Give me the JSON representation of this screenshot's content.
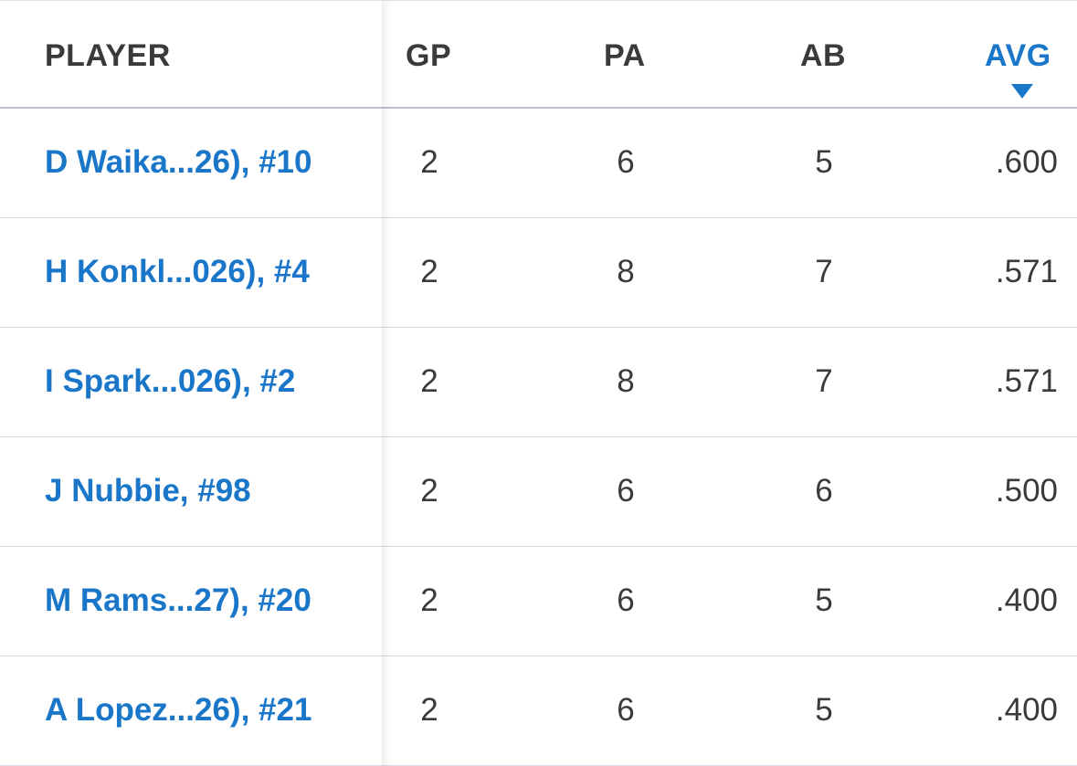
{
  "columns": {
    "player": "PLAYER",
    "gp": "GP",
    "pa": "PA",
    "ab": "AB",
    "avg": "AVG"
  },
  "sort": {
    "column": "AVG",
    "direction": "descending",
    "icon": "caret-down-icon"
  },
  "colors": {
    "link": "#1976c8",
    "text": "#3a3a3c",
    "divider": "#d5dbe2"
  },
  "rows": [
    {
      "player": "D Waika...26), #10",
      "gp": "2",
      "pa": "6",
      "ab": "5",
      "avg": ".600"
    },
    {
      "player": "H Konkl...026), #4",
      "gp": "2",
      "pa": "8",
      "ab": "7",
      "avg": ".571"
    },
    {
      "player": "I Spark...026), #2",
      "gp": "2",
      "pa": "8",
      "ab": "7",
      "avg": ".571"
    },
    {
      "player": "J Nubbie, #98",
      "gp": "2",
      "pa": "6",
      "ab": "6",
      "avg": ".500"
    },
    {
      "player": "M Rams...27), #20",
      "gp": "2",
      "pa": "6",
      "ab": "5",
      "avg": ".400"
    },
    {
      "player": "A Lopez...26), #21",
      "gp": "2",
      "pa": "6",
      "ab": "5",
      "avg": ".400"
    }
  ]
}
